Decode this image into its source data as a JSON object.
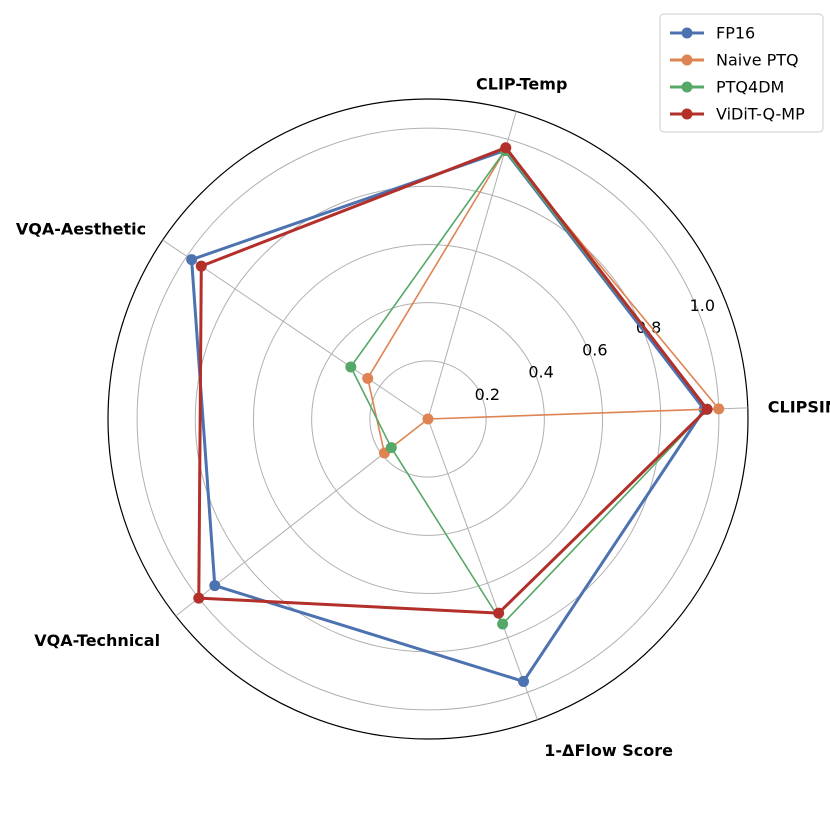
{
  "chart_data": {
    "type": "radar",
    "axes": [
      "CLIPSIM",
      "CLIP-Temp",
      "VQA-Aesthetic",
      "VQA-Technical",
      "1-ΔFlow Score"
    ],
    "radial_ticks": [
      "0.2",
      "0.4",
      "0.6",
      "0.8",
      "1.0"
    ],
    "rlim": [
      0,
      1.1
    ],
    "grid": true,
    "legend_position": "top-right",
    "series": [
      {
        "name": "FP16",
        "color": "#4c72b0",
        "values": [
          0.95,
          0.96,
          0.98,
          0.93,
          0.96
        ]
      },
      {
        "name": "Naive PTQ",
        "color": "#dd8452",
        "values": [
          1.0,
          0.96,
          0.25,
          0.19,
          0.0
        ]
      },
      {
        "name": "PTQ4DM",
        "color": "#55a868",
        "values": [
          0.96,
          0.96,
          0.32,
          0.16,
          0.75
        ]
      },
      {
        "name": "ViDiT-Q-MP",
        "color": "#b22f2a",
        "values": [
          0.96,
          0.97,
          0.94,
          1.0,
          0.71
        ]
      }
    ]
  }
}
